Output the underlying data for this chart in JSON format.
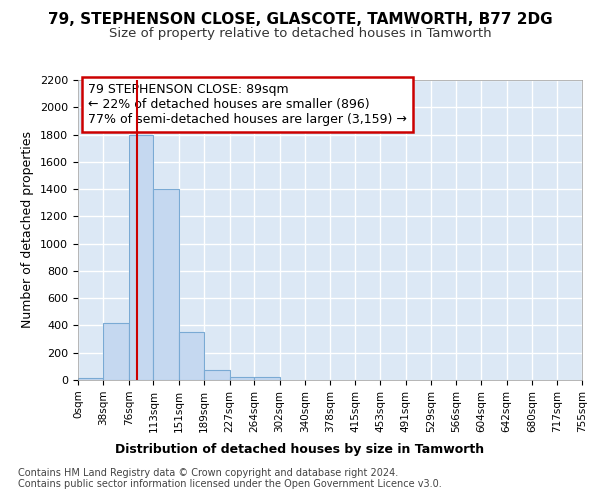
{
  "title1": "79, STEPHENSON CLOSE, GLASCOTE, TAMWORTH, B77 2DG",
  "title2": "Size of property relative to detached houses in Tamworth",
  "xlabel": "Distribution of detached houses by size in Tamworth",
  "ylabel": "Number of detached properties",
  "bin_edges": [
    0,
    38,
    76,
    113,
    151,
    189,
    227,
    264,
    302,
    340,
    378,
    415,
    453,
    491,
    529,
    566,
    604,
    642,
    680,
    717,
    755
  ],
  "bar_heights": [
    15,
    420,
    1800,
    1400,
    350,
    75,
    25,
    20,
    0,
    0,
    0,
    0,
    0,
    0,
    0,
    0,
    0,
    0,
    0,
    0
  ],
  "bar_color": "#c5d8f0",
  "bar_edge_color": "#7aaad4",
  "property_size": 89,
  "property_line_color": "#cc0000",
  "annotation_text": "79 STEPHENSON CLOSE: 89sqm\n← 22% of detached houses are smaller (896)\n77% of semi-detached houses are larger (3,159) →",
  "annotation_box_color": "#ffffff",
  "annotation_box_edge": "#cc0000",
  "footer_text": "Contains HM Land Registry data © Crown copyright and database right 2024.\nContains public sector information licensed under the Open Government Licence v3.0.",
  "ylim": [
    0,
    2200
  ],
  "yticks": [
    0,
    200,
    400,
    600,
    800,
    1000,
    1200,
    1400,
    1600,
    1800,
    2000,
    2200
  ],
  "fig_bg_color": "#ffffff",
  "plot_bg_color": "#dce8f5",
  "grid_color": "#ffffff",
  "title1_fontsize": 11,
  "title2_fontsize": 9.5,
  "tick_labels": [
    "0sqm",
    "38sqm",
    "76sqm",
    "113sqm",
    "151sqm",
    "189sqm",
    "227sqm",
    "264sqm",
    "302sqm",
    "340sqm",
    "378sqm",
    "415sqm",
    "453sqm",
    "491sqm",
    "529sqm",
    "566sqm",
    "604sqm",
    "642sqm",
    "680sqm",
    "717sqm",
    "755sqm"
  ]
}
